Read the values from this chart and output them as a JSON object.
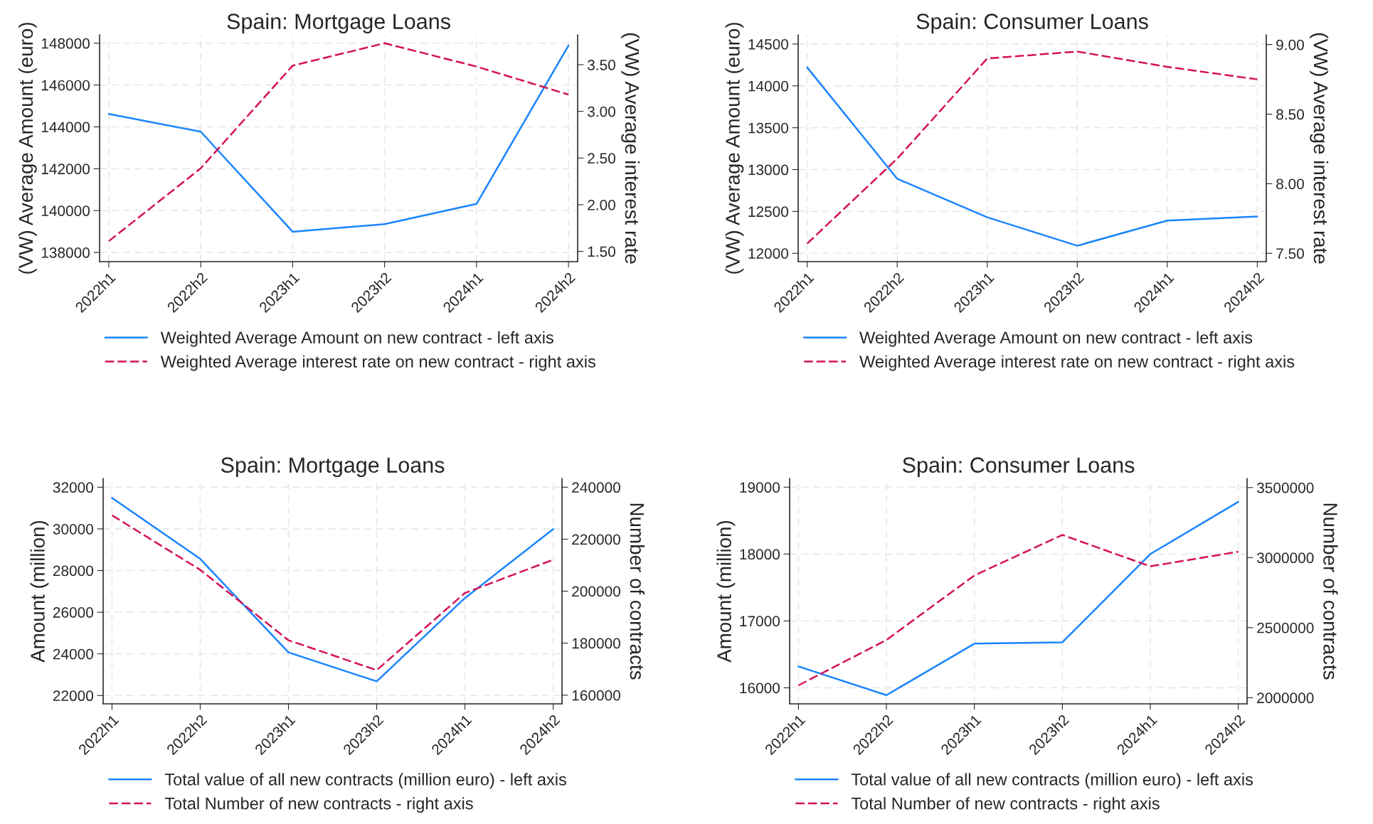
{
  "chart_data": [
    {
      "type": "line",
      "title": "Spain: Mortgage Loans",
      "categories": [
        "2022h1",
        "2022h2",
        "2023h1",
        "2023h2",
        "2024h1",
        "2024h2"
      ],
      "ylabel": "(VW) Average Amount (euro)",
      "y2label": "(VW) Average interest rate",
      "ylim": [
        137560,
        148400
      ],
      "yticks": [
        138000,
        140000,
        142000,
        144000,
        146000,
        148000
      ],
      "y2lim": [
        1.39,
        3.82
      ],
      "y2ticks": [
        {
          "value": 1.5,
          "label": "1.50"
        },
        {
          "value": 2.0,
          "label": "2.00"
        },
        {
          "value": 2.5,
          "label": "2.50"
        },
        {
          "value": 3.0,
          "label": "3.00"
        },
        {
          "value": 3.5,
          "label": "3.50"
        }
      ],
      "grid": true,
      "legend": "bottom",
      "series": [
        {
          "name": "Weighted Average Amount on new contract - left axis",
          "color": "#1a85ff",
          "line_style": "solid",
          "values": [
            144620,
            143770,
            138990,
            139350,
            140320,
            147890
          ]
        },
        {
          "name": "Weighted Average interest rate on new contract - right axis",
          "color": "#d41159",
          "line_style": "dashed",
          "axis": "y2",
          "values": [
            1.61,
            2.39,
            3.49,
            3.73,
            3.48,
            3.18
          ]
        }
      ]
    },
    {
      "type": "line",
      "title": "Spain: Consumer Loans",
      "categories": [
        "2022h1",
        "2022h2",
        "2023h1",
        "2023h2",
        "2024h1",
        "2024h2"
      ],
      "ylabel": "(VW) Average Amount (euro)",
      "y2label": "(VW) Average interest rate",
      "ylim": [
        11900,
        14610
      ],
      "yticks": [
        12000,
        12500,
        13000,
        13500,
        14000,
        14500
      ],
      "y2lim": [
        7.44,
        9.07
      ],
      "y2ticks": [
        {
          "value": 7.5,
          "label": "7.50"
        },
        {
          "value": 8.0,
          "label": "8.00"
        },
        {
          "value": 8.5,
          "label": "8.50"
        },
        {
          "value": 9.0,
          "label": "9.00"
        }
      ],
      "grid": true,
      "legend": "bottom",
      "series": [
        {
          "name": "Weighted Average Amount on new contract - left axis",
          "color": "#1a85ff",
          "line_style": "solid",
          "values": [
            14220,
            12890,
            12430,
            12090,
            12390,
            12440
          ]
        },
        {
          "name": "Weighted Average interest rate on new contract - right axis",
          "color": "#d41159",
          "line_style": "dashed",
          "axis": "y2",
          "values": [
            7.57,
            8.18,
            8.9,
            8.95,
            8.84,
            8.75
          ]
        }
      ]
    },
    {
      "type": "line",
      "title": "Spain: Mortgage Loans",
      "categories": [
        "2022h1",
        "2022h2",
        "2023h1",
        "2023h2",
        "2024h1",
        "2024h2"
      ],
      "ylabel": "Amount (million)",
      "y2label": "Number of contracts",
      "ylim": [
        21600,
        32420
      ],
      "yticks": [
        22000,
        24000,
        26000,
        28000,
        30000,
        32000
      ],
      "y2lim": [
        156640,
        243360
      ],
      "y2ticks": [
        160000,
        180000,
        200000,
        220000,
        240000
      ],
      "grid": true,
      "legend": "bottom",
      "series": [
        {
          "name": "Total value of all new contracts (million euro) - left axis",
          "color": "#1a85ff",
          "line_style": "solid",
          "values": [
            31490,
            28560,
            24070,
            22680,
            26680,
            29990
          ]
        },
        {
          "name": "Total Number of new contracts - right axis",
          "color": "#d41159",
          "line_style": "dashed",
          "axis": "y2",
          "values": [
            229200,
            208200,
            181100,
            169600,
            199300,
            212100
          ]
        }
      ]
    },
    {
      "type": "line",
      "title": "Spain: Consumer Loans",
      "categories": [
        "2022h1",
        "2022h2",
        "2023h1",
        "2023h2",
        "2024h1",
        "2024h2"
      ],
      "ylabel": "Amount (million)",
      "y2label": "Number of contracts",
      "ylim": [
        15760,
        19130
      ],
      "yticks": [
        16000,
        17000,
        18000,
        19000
      ],
      "y2lim": [
        1956000,
        3565000
      ],
      "y2ticks": [
        2000000,
        2500000,
        3000000,
        3500000
      ],
      "grid": true,
      "legend": "bottom",
      "series": [
        {
          "name": "Total value of all new contracts (million euro) - left axis",
          "color": "#1a85ff",
          "line_style": "solid",
          "values": [
            16320,
            15890,
            16660,
            16680,
            18000,
            18780
          ]
        },
        {
          "name": "Total Number of new contracts - right axis",
          "color": "#d41159",
          "line_style": "dashed",
          "axis": "y2",
          "values": [
            2088000,
            2412000,
            2873000,
            3162000,
            2938000,
            3042000
          ]
        }
      ]
    }
  ]
}
